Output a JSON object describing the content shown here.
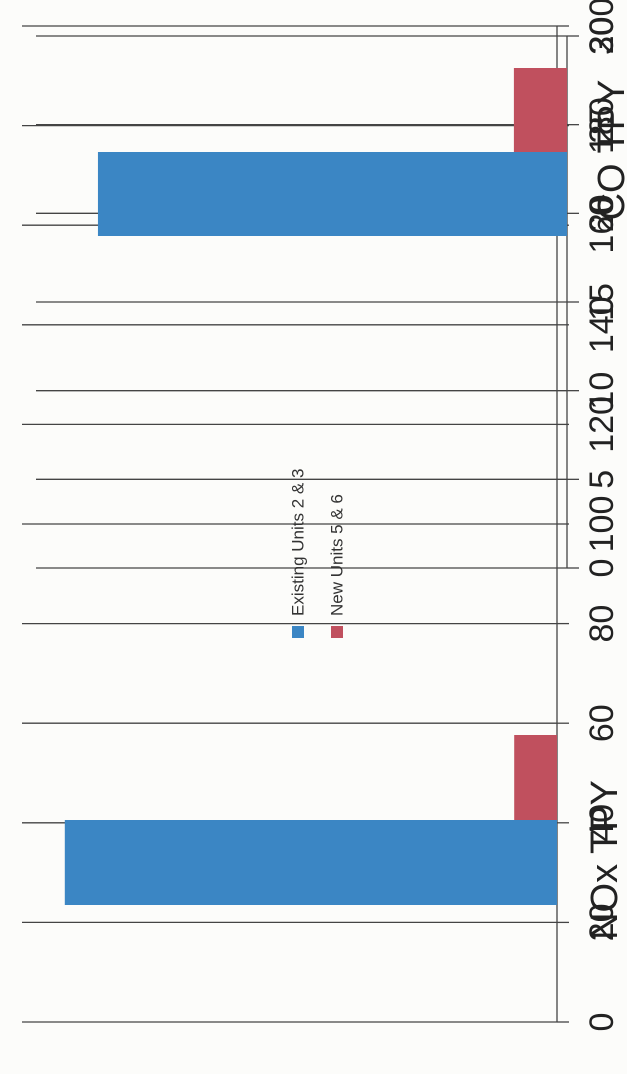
{
  "chart_data": [
    {
      "type": "bar",
      "orientation": "rotated-90-counterclockwise",
      "categories": [
        "NOx TPY"
      ],
      "series": [
        {
          "name": "Existing Units 2 & 3",
          "values": [
            184
          ]
        },
        {
          "name": "New Units 5 & 6",
          "values": [
            16
          ]
        }
      ],
      "ylim": [
        0,
        200
      ],
      "ticks": [
        "0",
        "20",
        "40",
        "60",
        "80",
        "100",
        "120",
        "140",
        "160",
        "180",
        "200"
      ],
      "grid": true
    },
    {
      "type": "bar",
      "orientation": "rotated-90-counterclockwise",
      "categories": [
        "CO TPY"
      ],
      "series": [
        {
          "name": "Existing Units 2 & 3",
          "values": [
            26.5
          ]
        },
        {
          "name": "New Units 5 & 6",
          "values": [
            3
          ]
        }
      ],
      "ylim": [
        0,
        30
      ],
      "ticks": [
        "0",
        "5",
        "10",
        "15",
        "20",
        "25",
        "30"
      ],
      "grid": true
    }
  ],
  "legend": {
    "placement": "center",
    "items": [
      {
        "label": "Existing Units 2 & 3",
        "color": "#3b86c4"
      },
      {
        "label": "New Units 5 & 6",
        "color": "#c0505e"
      }
    ]
  },
  "colors": {
    "series_1": "#3b86c4",
    "series_2": "#c0505e",
    "grid": "#444444"
  }
}
